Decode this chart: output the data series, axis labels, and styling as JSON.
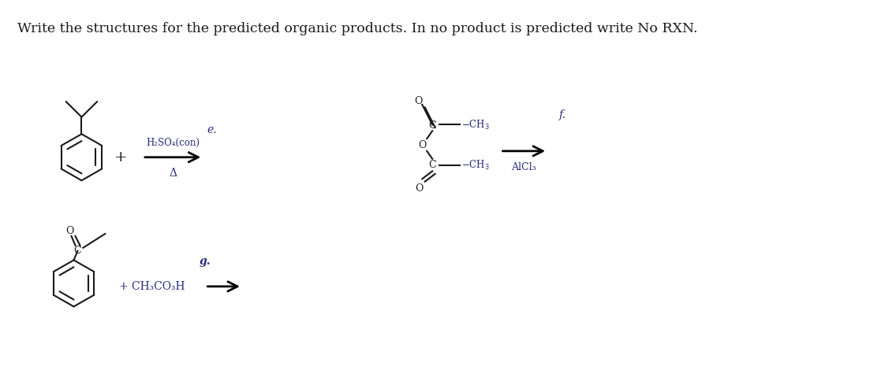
{
  "title": "Write the structures for the predicted organic products. In no product is predicted write No RXN.",
  "title_fontsize": 12.5,
  "bg_color": "#ffffff",
  "text_color": "#1a1a1a",
  "chem_color": "#1a1a1a",
  "label_color": "#2a2a80",
  "label_e": "e.",
  "label_f": "f.",
  "label_g": "g.",
  "reagent_e_top": "H₂SO₄(con)",
  "reagent_e_bot": "Δ",
  "reagent_f_bot": "AlCl₃",
  "reagent_g": "+ CH₃CO₃H",
  "fig_w": 11.36,
  "fig_h": 4.84,
  "dpi": 100
}
